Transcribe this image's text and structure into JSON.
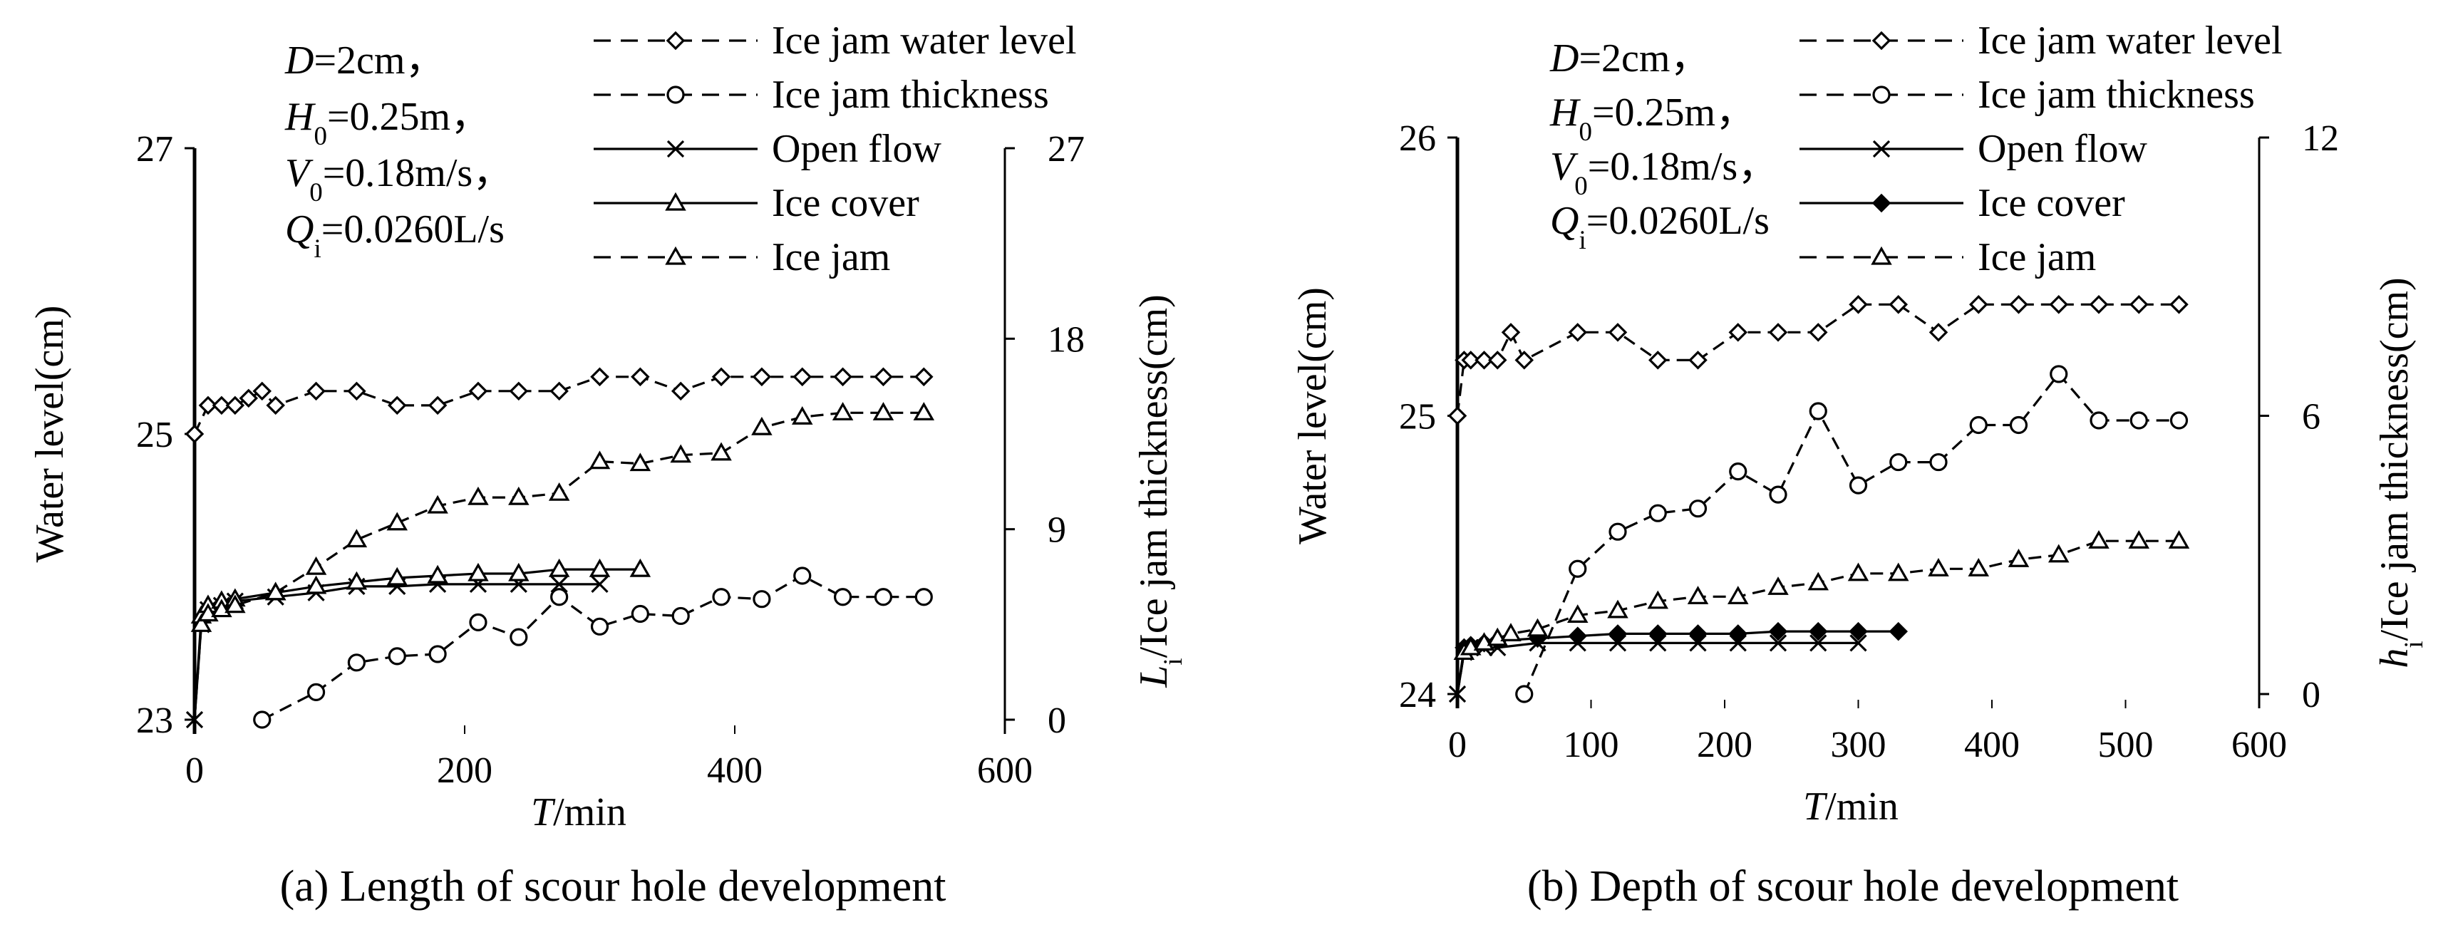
{
  "chart_data": [
    {
      "type": "line",
      "caption": "(a) Length of scour hole development",
      "params": [
        {
          "var": "D",
          "sub": "",
          "rest": "=2cm，"
        },
        {
          "var": "H",
          "sub": "0",
          "rest": "=0.25m，"
        },
        {
          "var": "V",
          "sub": "0",
          "rest": "=0.18m/s，"
        },
        {
          "var": "Q",
          "sub": "i",
          "rest": "=0.0260L/s"
        }
      ],
      "xlabel": {
        "var": "T",
        "rest": "/min"
      },
      "ylabel": "Water level(cm)",
      "y2label": {
        "var": "L",
        "sub": "i",
        "rest": "/Ice jam thickness(cm)"
      },
      "xlim": [
        0,
        600
      ],
      "xticks": [
        "0",
        "200",
        "400",
        "600"
      ],
      "ylim": [
        23,
        27
      ],
      "yticks": [
        "23",
        "25",
        "27"
      ],
      "y2lim": [
        0,
        27
      ],
      "y2ticks": [
        "0",
        "9",
        "18",
        "27"
      ],
      "series": [
        {
          "name": "Ice jam water level",
          "axis": "left",
          "style": "dashed",
          "marker": "diamond-open",
          "x": [
            0,
            10,
            20,
            30,
            40,
            50,
            60,
            90,
            120,
            150,
            180,
            210,
            240,
            270,
            300,
            330,
            360,
            390,
            420,
            450,
            480,
            510,
            540
          ],
          "y": [
            25.0,
            25.2,
            25.2,
            25.2,
            25.25,
            25.3,
            25.2,
            25.3,
            25.3,
            25.2,
            25.2,
            25.3,
            25.3,
            25.3,
            25.4,
            25.4,
            25.3,
            25.4,
            25.4,
            25.4,
            25.4,
            25.4,
            25.4
          ]
        },
        {
          "name": "Ice jam thickness",
          "axis": "right",
          "style": "dashed",
          "marker": "circle-open",
          "x": [
            50,
            90,
            120,
            150,
            180,
            210,
            240,
            270,
            300,
            330,
            360,
            390,
            420,
            450,
            480,
            510,
            540
          ],
          "y": [
            0,
            1.3,
            2.7,
            3.0,
            3.1,
            4.6,
            3.9,
            5.8,
            4.4,
            5.0,
            4.9,
            5.8,
            5.7,
            6.8,
            5.8,
            5.8,
            5.8
          ]
        },
        {
          "name": "Open flow",
          "axis": "right",
          "style": "solid",
          "marker": "x",
          "x": [
            0,
            5,
            10,
            20,
            30,
            60,
            90,
            120,
            150,
            180,
            210,
            240,
            270,
            300
          ],
          "y": [
            0,
            4.5,
            5.2,
            5.4,
            5.6,
            5.8,
            6.0,
            6.3,
            6.3,
            6.4,
            6.4,
            6.4,
            6.4,
            6.4
          ]
        },
        {
          "name": "Ice cover",
          "axis": "right",
          "style": "solid",
          "marker": "triangle-open",
          "x": [
            0,
            5,
            10,
            20,
            30,
            60,
            90,
            120,
            150,
            180,
            210,
            240,
            270,
            300,
            330
          ],
          "y": [
            0,
            4.9,
            5.4,
            5.6,
            5.7,
            6.0,
            6.3,
            6.5,
            6.7,
            6.8,
            6.9,
            6.9,
            7.1,
            7.1,
            7.1
          ]
        },
        {
          "name": "Ice jam",
          "axis": "right",
          "style": "dashed",
          "marker": "triangle-open",
          "x": [
            0,
            5,
            10,
            20,
            30,
            60,
            90,
            120,
            150,
            180,
            210,
            240,
            270,
            300,
            330,
            360,
            390,
            420,
            450,
            480,
            510,
            540
          ],
          "y": [
            0,
            4.5,
            5.0,
            5.2,
            5.4,
            6.0,
            7.2,
            8.5,
            9.3,
            10.1,
            10.5,
            10.5,
            10.7,
            12.2,
            12.1,
            12.5,
            12.6,
            13.8,
            14.3,
            14.5,
            14.5,
            14.5
          ]
        }
      ]
    },
    {
      "type": "line",
      "caption": "(b) Depth of scour hole development",
      "params": [
        {
          "var": "D",
          "sub": "",
          "rest": "=2cm，"
        },
        {
          "var": "H",
          "sub": "0",
          "rest": "=0.25m，"
        },
        {
          "var": "V",
          "sub": "0",
          "rest": "=0.18m/s，"
        },
        {
          "var": "Q",
          "sub": "i",
          "rest": "=0.0260L/s"
        }
      ],
      "xlabel": {
        "var": "T",
        "rest": "/min"
      },
      "ylabel": "Water level(cm)",
      "y2label": {
        "var": "h",
        "sub": "i",
        "rest": "/Ice jam thickness(cm)"
      },
      "xlim": [
        0,
        600
      ],
      "xticks": [
        "0",
        "100",
        "200",
        "300",
        "400",
        "500",
        "600"
      ],
      "ylim": [
        24,
        26
      ],
      "yticks": [
        "24",
        "25",
        "26"
      ],
      "y2lim": [
        0,
        12
      ],
      "y2ticks": [
        "0",
        "6",
        "12"
      ],
      "series": [
        {
          "name": "Ice jam water level",
          "axis": "left",
          "style": "dashed",
          "marker": "diamond-open",
          "x": [
            0,
            5,
            10,
            20,
            30,
            40,
            50,
            90,
            120,
            150,
            180,
            210,
            240,
            270,
            300,
            330,
            360,
            390,
            420,
            450,
            480,
            510,
            540
          ],
          "y": [
            25.0,
            25.2,
            25.2,
            25.2,
            25.2,
            25.3,
            25.2,
            25.3,
            25.3,
            25.2,
            25.2,
            25.3,
            25.3,
            25.3,
            25.4,
            25.4,
            25.3,
            25.4,
            25.4,
            25.4,
            25.4,
            25.4,
            25.4
          ]
        },
        {
          "name": "Ice jam thickness",
          "axis": "right",
          "style": "dashed",
          "marker": "circle-open",
          "x": [
            50,
            90,
            120,
            150,
            180,
            210,
            240,
            270,
            300,
            330,
            360,
            390,
            420,
            450,
            480,
            510,
            540
          ],
          "y": [
            0,
            2.7,
            3.5,
            3.9,
            4.0,
            4.8,
            4.3,
            6.1,
            4.5,
            5.0,
            5.0,
            5.8,
            5.8,
            6.9,
            5.9,
            5.9,
            5.9
          ]
        },
        {
          "name": "Open flow",
          "axis": "right",
          "style": "solid",
          "marker": "x",
          "x": [
            0,
            5,
            10,
            20,
            30,
            60,
            90,
            120,
            150,
            180,
            210,
            240,
            270,
            300
          ],
          "y": [
            0,
            0.9,
            1.0,
            1.0,
            1.0,
            1.1,
            1.1,
            1.1,
            1.1,
            1.1,
            1.1,
            1.1,
            1.1,
            1.1
          ]
        },
        {
          "name": "Ice cover",
          "axis": "right",
          "style": "solid",
          "marker": "diamond-filled",
          "x": [
            0,
            5,
            10,
            20,
            30,
            60,
            90,
            120,
            150,
            180,
            210,
            240,
            270,
            300,
            330
          ],
          "y": [
            0,
            1.0,
            1.05,
            1.1,
            1.15,
            1.2,
            1.25,
            1.3,
            1.3,
            1.3,
            1.3,
            1.35,
            1.35,
            1.35,
            1.35
          ]
        },
        {
          "name": "Ice jam",
          "axis": "right",
          "style": "dashed",
          "marker": "triangle-open",
          "x": [
            0,
            5,
            10,
            20,
            30,
            40,
            60,
            90,
            120,
            150,
            180,
            210,
            240,
            270,
            300,
            330,
            360,
            390,
            420,
            450,
            480,
            510,
            540
          ],
          "y": [
            0,
            0.9,
            1.0,
            1.1,
            1.2,
            1.3,
            1.4,
            1.7,
            1.8,
            2.0,
            2.1,
            2.1,
            2.3,
            2.4,
            2.6,
            2.6,
            2.7,
            2.7,
            2.9,
            3.0,
            3.3,
            3.3,
            3.3
          ]
        }
      ]
    }
  ]
}
